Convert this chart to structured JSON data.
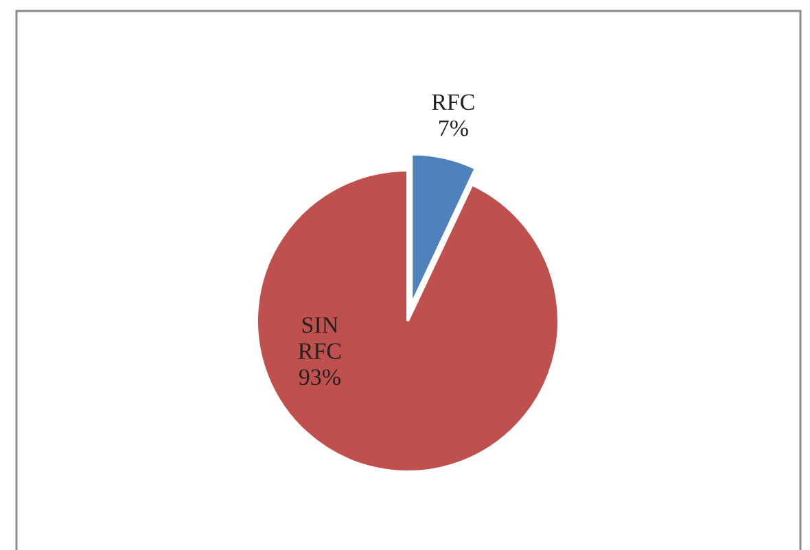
{
  "chart_data": {
    "type": "pie",
    "categories": [
      "RFC",
      "SIN RFC"
    ],
    "values": [
      7,
      93
    ],
    "colors": [
      "#4f81bd",
      "#c0504d"
    ],
    "value_labels": [
      "7%",
      "93%"
    ]
  }
}
